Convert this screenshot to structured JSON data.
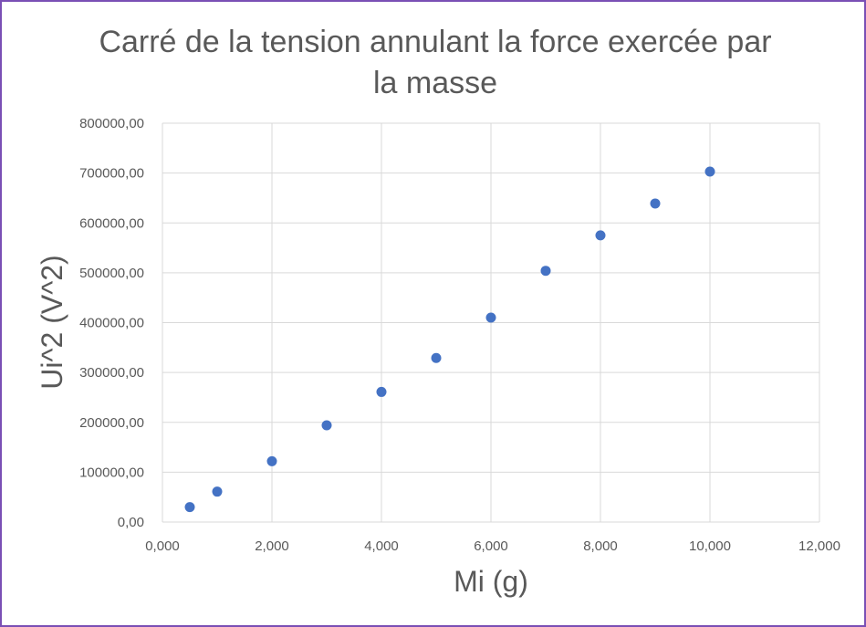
{
  "chart_data": {
    "type": "scatter",
    "title": "Carré de la tension annulant la force exercée par la masse",
    "title_lines": [
      "Carré de la tension annulant la force exercée par",
      "la masse"
    ],
    "xlabel": "Mi (g)",
    "ylabel": "Ui^2 (V^2)",
    "xlim": [
      0,
      12
    ],
    "ylim": [
      0,
      800000
    ],
    "x_ticks": [
      0,
      2,
      4,
      6,
      8,
      10,
      12
    ],
    "y_ticks": [
      0,
      100000,
      200000,
      300000,
      400000,
      500000,
      600000,
      700000,
      800000
    ],
    "x_tick_labels": [
      "0,000",
      "2,000",
      "4,000",
      "6,000",
      "8,000",
      "10,000",
      "12,000"
    ],
    "y_tick_labels": [
      "0,00",
      "100000,00",
      "200000,00",
      "300000,00",
      "400000,00",
      "500000,00",
      "600000,00",
      "700000,00",
      "800000,00"
    ],
    "grid": true,
    "series": [
      {
        "x": [
          0.5,
          1,
          2,
          3,
          4,
          5,
          6,
          7,
          8,
          9,
          10
        ],
        "y": [
          30000,
          61000,
          122000,
          194000,
          261000,
          329000,
          410000,
          504000,
          575000,
          639000,
          703000
        ]
      }
    ],
    "marker_color": "#4472c4",
    "grid_color": "#d9d9d9",
    "text_color": "#595959",
    "border_color": "#7a4fb5"
  }
}
